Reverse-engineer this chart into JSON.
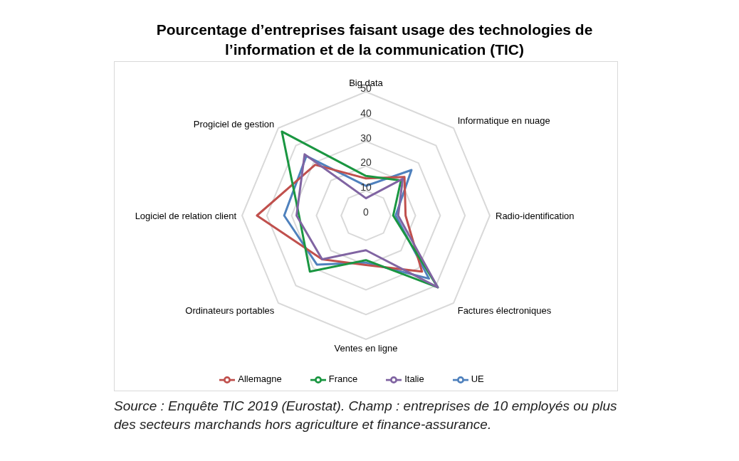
{
  "chart_data": {
    "type": "radar",
    "title": "Pourcentage d’entreprises faisant usage des technologies de l’information et de la communication (TIC)",
    "categories": [
      "Big data",
      "Informatique en nuage",
      "Radio-identification",
      "Factures électroniques",
      "Ventes en ligne",
      "Ordinateurs portables",
      "Logiciel de relation client",
      "Progiciel de gestion"
    ],
    "series": [
      {
        "name": "UE",
        "color": "#4f81bd",
        "values": [
          12,
          26,
          12,
          36,
          19,
          28,
          33,
          34
        ]
      },
      {
        "name": "Allemagne",
        "color": "#c0504d",
        "values": [
          15,
          22,
          16,
          32,
          20,
          25,
          44,
          29
        ]
      },
      {
        "name": "France",
        "color": "#1a9641",
        "values": [
          16,
          20,
          11,
          41,
          18,
          32,
          27,
          48
        ]
      },
      {
        "name": "Italie",
        "color": "#8064a2",
        "values": [
          7,
          21,
          13,
          41,
          14,
          25,
          28,
          35
        ]
      }
    ],
    "ylim": [
      0,
      50
    ],
    "yticks": [
      0,
      10,
      20,
      30,
      40,
      50
    ],
    "grid": true,
    "legend": "bottom",
    "marker": "none",
    "annotations": [
      "Source : Enquête TIC 2019 (Eurostat). Champ : entreprises de 10 employés ou plus des secteurs marchands hors agriculture et finance-assurance."
    ]
  }
}
